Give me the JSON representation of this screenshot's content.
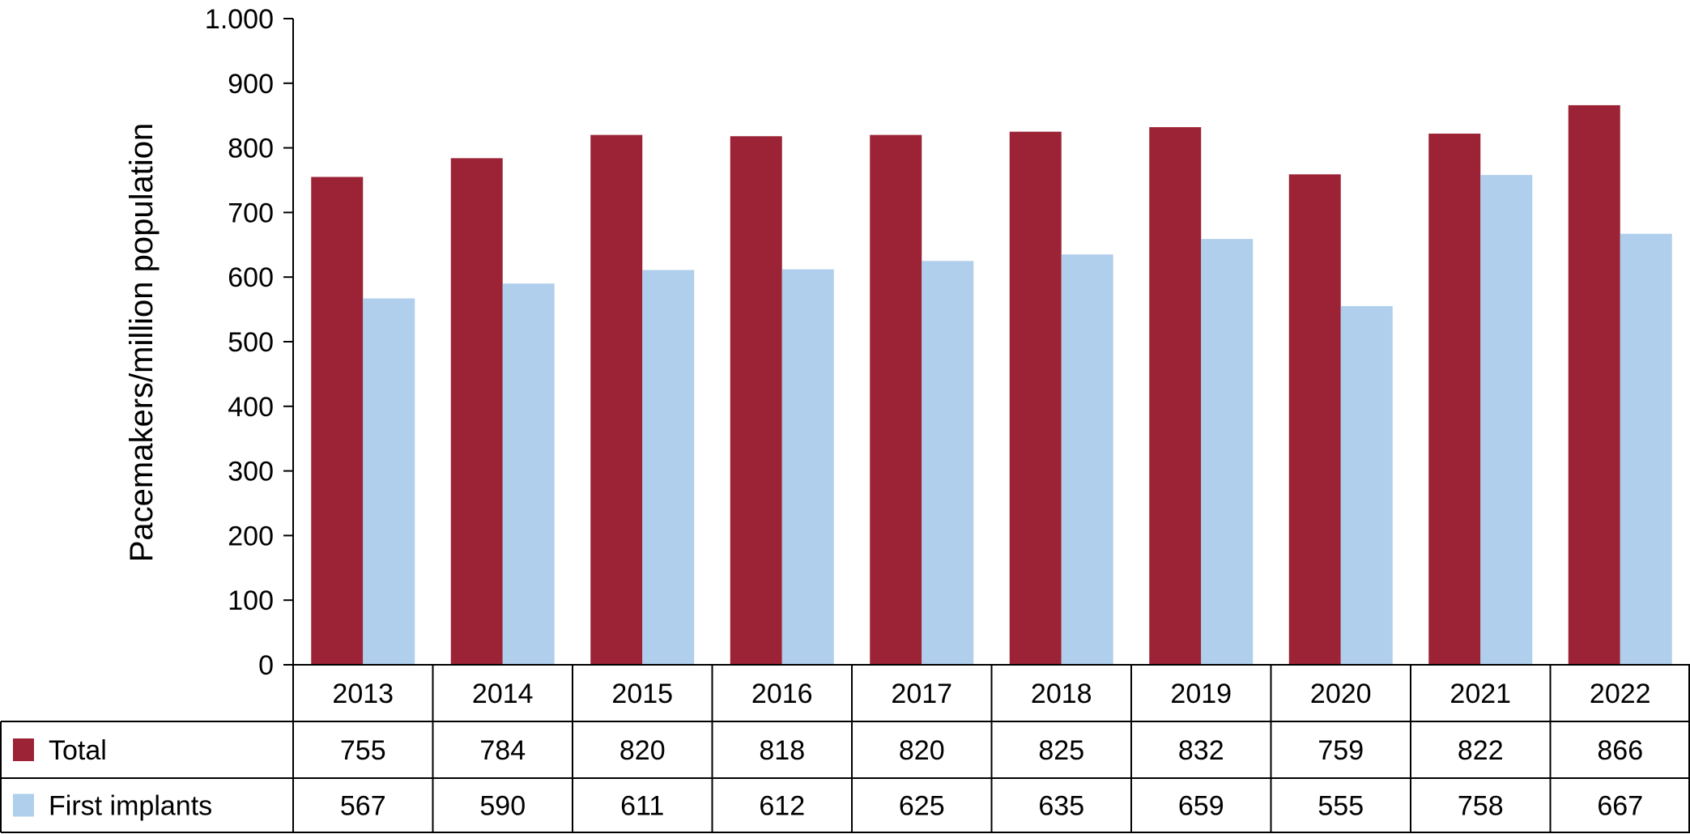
{
  "chart_data": {
    "type": "bar",
    "ylabel": "Pacemakers/million population",
    "ylim": [
      0,
      1000
    ],
    "yticks": [
      0,
      100,
      200,
      300,
      400,
      500,
      600,
      700,
      800,
      900,
      1000
    ],
    "ytick_labels": [
      "0",
      "100",
      "200",
      "300",
      "400",
      "500",
      "600",
      "700",
      "800",
      "900",
      "1.000"
    ],
    "grid": false,
    "legend": "data-table-rows",
    "categories": [
      "2013",
      "2014",
      "2015",
      "2016",
      "2017",
      "2018",
      "2019",
      "2020",
      "2021",
      "2022"
    ],
    "series": [
      {
        "name": "Total",
        "color": "#9b2335",
        "values": [
          755,
          784,
          820,
          818,
          820,
          825,
          832,
          759,
          822,
          866
        ]
      },
      {
        "name": "First implants",
        "color": "#b0cfec",
        "values": [
          567,
          590,
          611,
          612,
          625,
          635,
          659,
          555,
          758,
          667
        ]
      }
    ]
  }
}
